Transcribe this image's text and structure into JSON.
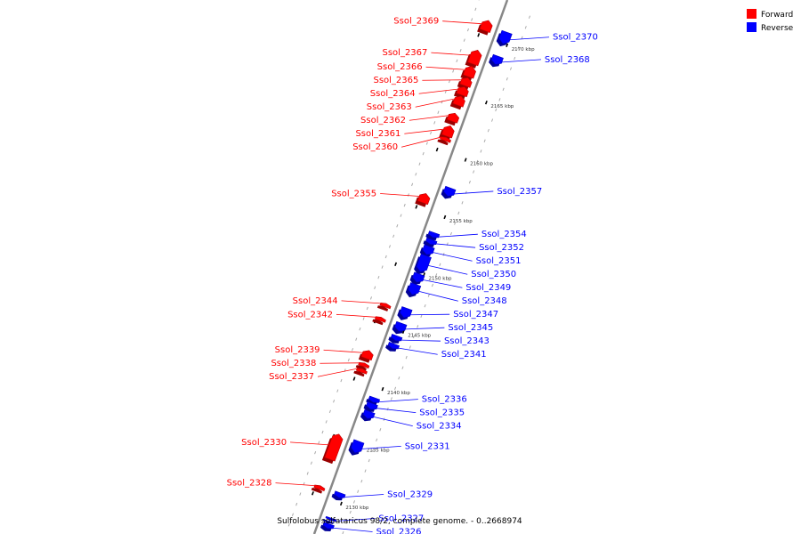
{
  "caption": "Sulfolobus solfataricus 98/2, complete genome. - 0..2668974",
  "legend": [
    {
      "name": "Forward",
      "color": "#ff0000"
    },
    {
      "name": "Reverse",
      "color": "#0000ff"
    }
  ],
  "colors": {
    "forward": "#ff0000",
    "reverse": "#0000ff",
    "axis": "#888888",
    "tick": "#000000"
  },
  "ticks": [
    {
      "label": "2130 kbp",
      "kbp": 2130
    },
    {
      "label": "2135 kbp",
      "kbp": 2135
    },
    {
      "label": "2140 kbp",
      "kbp": 2140
    },
    {
      "label": "2145 kbp",
      "kbp": 2145
    },
    {
      "label": "2150 kbp",
      "kbp": 2150
    },
    {
      "label": "2155 kbp",
      "kbp": 2155
    },
    {
      "label": "2160 kbp",
      "kbp": 2160
    },
    {
      "label": "2165 kbp",
      "kbp": 2165
    },
    {
      "label": "2170 kbp",
      "kbp": 2170
    }
  ],
  "genes": [
    {
      "name": "Ssol_2369",
      "strand": "forward",
      "start": 2170.5,
      "end": 2171.4
    },
    {
      "name": "Ssol_2367",
      "strand": "forward",
      "start": 2167.6,
      "end": 2168.8
    },
    {
      "name": "Ssol_2366",
      "strand": "forward",
      "start": 2166.5,
      "end": 2167.4
    },
    {
      "name": "Ssol_2365",
      "strand": "forward",
      "start": 2165.7,
      "end": 2166.4
    },
    {
      "name": "Ssol_2364",
      "strand": "forward",
      "start": 2164.9,
      "end": 2165.6
    },
    {
      "name": "Ssol_2363",
      "strand": "forward",
      "start": 2164.0,
      "end": 2164.8
    },
    {
      "name": "Ssol_2362",
      "strand": "forward",
      "start": 2162.6,
      "end": 2163.3
    },
    {
      "name": "Ssol_2361",
      "strand": "forward",
      "start": 2161.3,
      "end": 2162.2
    },
    {
      "name": "Ssol_2360",
      "strand": "forward",
      "start": 2160.9,
      "end": 2161.2
    },
    {
      "name": "Ssol_2355",
      "strand": "forward",
      "start": 2155.5,
      "end": 2156.3
    },
    {
      "name": "Ssol_2344",
      "strand": "forward",
      "start": 2146.4,
      "end": 2146.7
    },
    {
      "name": "Ssol_2342",
      "strand": "forward",
      "start": 2145.2,
      "end": 2145.5
    },
    {
      "name": "Ssol_2339",
      "strand": "forward",
      "start": 2141.9,
      "end": 2142.6
    },
    {
      "name": "Ssol_2338",
      "strand": "forward",
      "start": 2141.2,
      "end": 2141.5
    },
    {
      "name": "Ssol_2337",
      "strand": "forward",
      "start": 2140.7,
      "end": 2141.0
    },
    {
      "name": "Ssol_2330",
      "strand": "forward",
      "start": 2133.1,
      "end": 2135.3
    },
    {
      "name": "Ssol_2328",
      "strand": "forward",
      "start": 2130.5,
      "end": 2130.8
    },
    {
      "name": "Ssol_2370",
      "strand": "reverse",
      "start": 2170.0,
      "end": 2171.0
    },
    {
      "name": "Ssol_2368",
      "strand": "reverse",
      "start": 2168.2,
      "end": 2168.9
    },
    {
      "name": "Ssol_2357",
      "strand": "reverse",
      "start": 2156.7,
      "end": 2157.4
    },
    {
      "name": "Ssol_2354",
      "strand": "reverse",
      "start": 2153.1,
      "end": 2153.5
    },
    {
      "name": "Ssol_2352",
      "strand": "reverse",
      "start": 2152.5,
      "end": 2152.9
    },
    {
      "name": "Ssol_2351",
      "strand": "reverse",
      "start": 2151.6,
      "end": 2152.3
    },
    {
      "name": "Ssol_2350",
      "strand": "reverse",
      "start": 2150.1,
      "end": 2151.5
    },
    {
      "name": "Ssol_2349",
      "strand": "reverse",
      "start": 2149.2,
      "end": 2149.9
    },
    {
      "name": "Ssol_2348",
      "strand": "reverse",
      "start": 2148.1,
      "end": 2149.0
    },
    {
      "name": "Ssol_2347",
      "strand": "reverse",
      "start": 2146.1,
      "end": 2146.9
    },
    {
      "name": "Ssol_2345",
      "strand": "reverse",
      "start": 2144.9,
      "end": 2145.6
    },
    {
      "name": "Ssol_2343",
      "strand": "reverse",
      "start": 2144.1,
      "end": 2144.5
    },
    {
      "name": "Ssol_2341",
      "strand": "reverse",
      "start": 2143.4,
      "end": 2143.8
    },
    {
      "name": "Ssol_2336",
      "strand": "reverse",
      "start": 2138.7,
      "end": 2139.1
    },
    {
      "name": "Ssol_2335",
      "strand": "reverse",
      "start": 2138.1,
      "end": 2138.6
    },
    {
      "name": "Ssol_2334",
      "strand": "reverse",
      "start": 2137.3,
      "end": 2137.9
    },
    {
      "name": "Ssol_2331",
      "strand": "reverse",
      "start": 2134.3,
      "end": 2135.3
    },
    {
      "name": "Ssol_2329",
      "strand": "reverse",
      "start": 2130.4,
      "end": 2130.8
    },
    {
      "name": "Ssol_2327",
      "strand": "reverse",
      "start": 2128.4,
      "end": 2128.6
    },
    {
      "name": "Ssol_2326",
      "strand": "reverse",
      "start": 2127.7,
      "end": 2128.1
    }
  ]
}
